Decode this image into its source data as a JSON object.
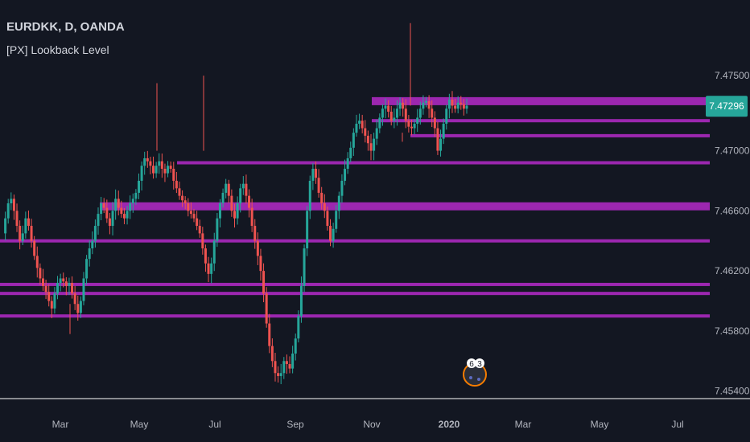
{
  "header": {
    "symbol_line": "EURDKK, D, OANDA",
    "indicator_name": "[PX] Lookback Level"
  },
  "colors": {
    "background": "#131722",
    "bull": "#26a69a",
    "bear": "#ef5350",
    "level": "#9c27b0",
    "axis_text": "#b2b5be",
    "last_price_bg": "#26a69a"
  },
  "chart_data": {
    "type": "candlestick",
    "symbol": "EURDKK",
    "timeframe": "D",
    "exchange": "OANDA",
    "y_axis": {
      "range": [
        7.4535,
        7.4795
      ],
      "ticks": [
        "7.47500",
        "7.47000",
        "7.46600",
        "7.46200",
        "7.45800",
        "7.45400"
      ],
      "tick_values": [
        7.475,
        7.47,
        7.466,
        7.462,
        7.458,
        7.454
      ]
    },
    "x_axis": {
      "ticks": [
        "Mar",
        "May",
        "Jul",
        "Sep",
        "Nov",
        "2020",
        "Mar",
        "May",
        "Jul"
      ]
    },
    "last_price": {
      "label": "7.47296",
      "value": 7.47296
    },
    "lookback_levels": [
      {
        "value": 7.4733,
        "thickness": 2,
        "from": "Nov",
        "to": "2020+"
      },
      {
        "value": 7.472,
        "thickness": 1,
        "from": "Nov",
        "to": "2020+"
      },
      {
        "value": 7.471,
        "thickness": 1,
        "from": "Dec",
        "to": "2020+"
      },
      {
        "value": 7.4692,
        "thickness": 1,
        "from": "Jun",
        "to": "2020+"
      },
      {
        "value": 7.4663,
        "thickness": 2,
        "from": "Apr",
        "to": "2020+"
      },
      {
        "value": 7.464,
        "thickness": 1,
        "from": "Jan",
        "to": "2020+"
      },
      {
        "value": 7.4611,
        "thickness": 1,
        "from": "Jan",
        "to": "2020+"
      },
      {
        "value": 7.4605,
        "thickness": 1,
        "from": "Jan",
        "to": "2020+"
      },
      {
        "value": 7.459,
        "thickness": 1,
        "from": "Jan",
        "to": "2020+"
      }
    ],
    "price_path": [
      7.4645,
      7.4655,
      7.4665,
      7.4668,
      7.466,
      7.465,
      7.464,
      7.4645,
      7.4655,
      7.465,
      7.464,
      7.463,
      7.4622,
      7.4615,
      7.461,
      7.4606,
      7.46,
      7.4595,
      7.4605,
      7.4612,
      7.4615,
      7.4613,
      7.461,
      7.4612,
      7.4605,
      7.4598,
      7.4592,
      7.46,
      7.4615,
      7.4628,
      7.4635,
      7.464,
      7.465,
      7.4658,
      7.4665,
      7.4662,
      7.4655,
      7.465,
      7.466,
      7.4668,
      7.4662,
      7.4658,
      7.4655,
      7.466,
      7.4665,
      7.4668,
      7.4672,
      7.468,
      7.469,
      7.4695,
      7.4693,
      7.469,
      7.4685,
      7.469,
      7.4693,
      7.4688,
      7.4685,
      7.469,
      7.4688,
      7.468,
      7.4675,
      7.467,
      7.4667,
      7.4665,
      7.466,
      7.4658,
      7.4655,
      7.465,
      7.4645,
      7.4635,
      7.4625,
      7.4618,
      7.4625,
      7.464,
      7.4655,
      7.4665,
      7.4672,
      7.4678,
      7.467,
      7.466,
      7.4655,
      7.4665,
      7.4675,
      7.4678,
      7.467,
      7.4662,
      7.465,
      7.464,
      7.463,
      7.462,
      7.4605,
      7.4585,
      7.457,
      7.456,
      7.4552,
      7.455,
      7.4552,
      7.456,
      7.4558,
      7.4555,
      7.4565,
      7.4575,
      7.459,
      7.461,
      7.4635,
      7.466,
      7.468,
      7.4688,
      7.4682,
      7.4672,
      7.4665,
      7.466,
      7.465,
      7.464,
      7.4648,
      7.466,
      7.467,
      7.468,
      7.4688,
      7.4695,
      7.4702,
      7.4712,
      7.4718,
      7.472,
      7.4715,
      7.471,
      7.4705,
      7.47,
      7.4708,
      7.4715,
      7.4722,
      7.4728,
      7.473,
      7.4726,
      7.472,
      7.4722,
      7.4728,
      7.4732,
      7.4728,
      7.472,
      7.4716,
      7.4715,
      7.4718,
      7.4722,
      7.4728,
      7.4732,
      7.4733,
      7.4728,
      7.4722,
      7.4715,
      7.47,
      7.4708,
      7.4718,
      7.4728,
      7.4734,
      7.473,
      7.4728,
      7.4732,
      7.4731,
      7.4728,
      7.473
    ]
  }
}
